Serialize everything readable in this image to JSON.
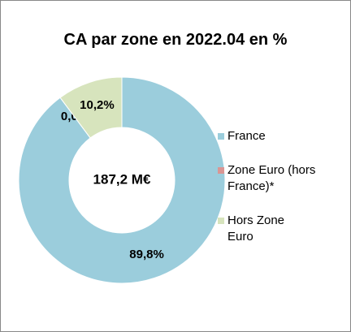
{
  "chart_data": {
    "type": "donut",
    "title": "CA par zone en 2022.04 en %",
    "center_label": "187,2 M€",
    "categories": [
      "France",
      "Zone Euro (hors France)*",
      "Hors Zone Euro"
    ],
    "values": [
      89.8,
      0.0,
      10.2
    ],
    "value_labels": [
      "89,8%",
      "0,0%",
      "10,2%"
    ],
    "colors": [
      "#9bcddc",
      "#d99694",
      "#d7e4bd"
    ],
    "legend": "right"
  }
}
